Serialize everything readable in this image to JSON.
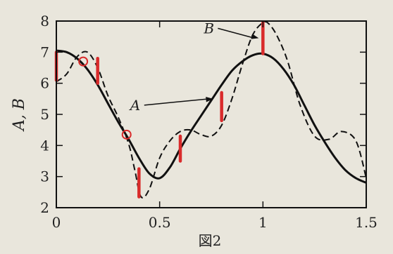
{
  "figure": {
    "caption": "図2"
  },
  "chart_data": {
    "type": "line",
    "xlabel": "",
    "ylabel": "A, B",
    "xlim": [
      0,
      1.5
    ],
    "ylim": [
      2,
      8
    ],
    "x_ticks": [
      "0",
      "0.5",
      "1",
      "1.5"
    ],
    "y_ticks": [
      "2",
      "3",
      "4",
      "5",
      "6",
      "7",
      "8"
    ],
    "x_tick_values": [
      0,
      0.5,
      1,
      1.5
    ],
    "y_tick_values": [
      2,
      3,
      4,
      5,
      6,
      7,
      8
    ],
    "grid": false,
    "series": [
      {
        "name": "A",
        "style": "solid",
        "x": [
          0,
          0.05,
          0.1,
          0.15,
          0.2,
          0.25,
          0.3,
          0.35,
          0.4,
          0.45,
          0.5,
          0.55,
          0.6,
          0.65,
          0.7,
          0.75,
          0.8,
          0.85,
          0.9,
          0.95,
          1.0,
          1.05,
          1.1,
          1.15,
          1.2,
          1.25,
          1.3,
          1.35,
          1.4,
          1.45,
          1.5
        ],
        "y": [
          7.05,
          7.0,
          6.8,
          6.45,
          5.95,
          5.35,
          4.75,
          4.2,
          3.6,
          3.1,
          2.95,
          3.3,
          3.9,
          4.45,
          4.95,
          5.45,
          5.95,
          6.4,
          6.7,
          6.9,
          6.95,
          6.8,
          6.45,
          5.95,
          5.3,
          4.65,
          4.1,
          3.6,
          3.2,
          2.95,
          2.8
        ]
      },
      {
        "name": "B",
        "style": "dashed",
        "x": [
          0,
          0.05,
          0.1,
          0.15,
          0.2,
          0.25,
          0.3,
          0.35,
          0.38,
          0.41,
          0.45,
          0.5,
          0.55,
          0.6,
          0.65,
          0.7,
          0.75,
          0.8,
          0.85,
          0.9,
          0.95,
          1.0,
          1.03,
          1.07,
          1.12,
          1.18,
          1.25,
          1.32,
          1.38,
          1.45,
          1.5
        ],
        "y": [
          6.05,
          6.3,
          6.85,
          7.0,
          6.5,
          5.6,
          4.9,
          4.05,
          3.2,
          2.35,
          2.6,
          3.6,
          4.15,
          4.45,
          4.5,
          4.35,
          4.3,
          4.65,
          5.5,
          6.6,
          7.55,
          7.95,
          7.9,
          7.5,
          6.7,
          5.3,
          4.3,
          4.2,
          4.45,
          4.15,
          2.95
        ]
      }
    ],
    "annotations": [
      {
        "text": "B",
        "arrow_to": [
          1.0,
          7.45
        ]
      },
      {
        "text": "A",
        "arrow_to": [
          0.78,
          5.5
        ]
      }
    ],
    "difference_bars": [
      {
        "x": 0.0,
        "from": 6.1,
        "to": 7.0
      },
      {
        "x": 0.2,
        "from": 6.0,
        "to": 6.8
      },
      {
        "x": 0.4,
        "from": 2.35,
        "to": 3.25
      },
      {
        "x": 0.6,
        "from": 3.5,
        "to": 4.3
      },
      {
        "x": 0.8,
        "from": 4.8,
        "to": 5.7
      },
      {
        "x": 1.0,
        "from": 6.95,
        "to": 7.95
      }
    ],
    "intersection_circles": [
      {
        "x": 0.13,
        "y": 6.7
      },
      {
        "x": 0.34,
        "y": 4.35
      }
    ],
    "highlight_color": "#d92b2b",
    "line_color": "#111111"
  }
}
